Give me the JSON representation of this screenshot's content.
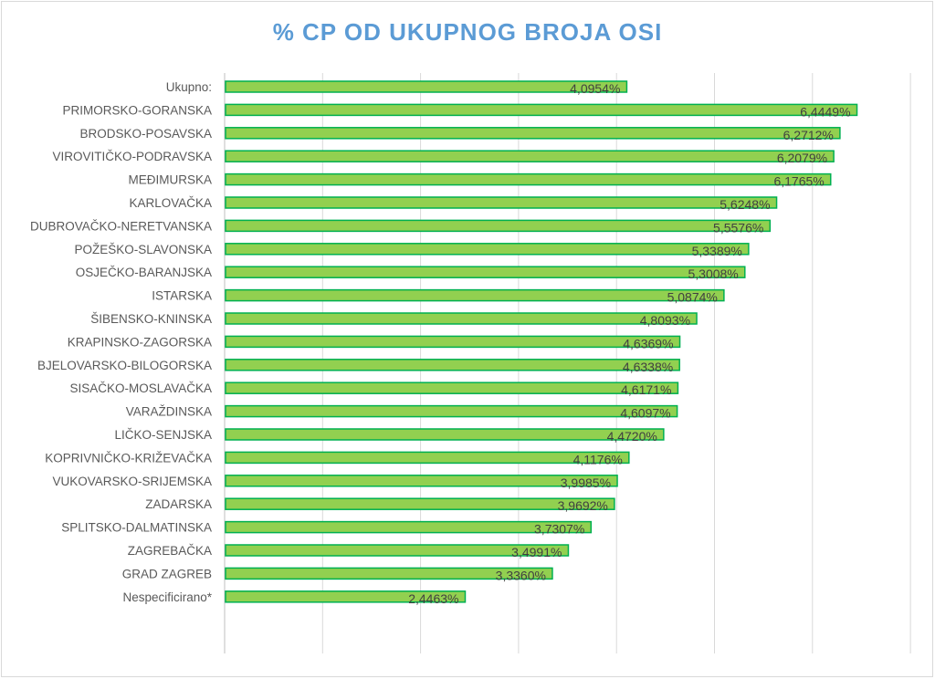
{
  "chart_data": {
    "type": "bar",
    "orientation": "horizontal",
    "title": "% CP OD UKUPNOG BROJA OSI",
    "xlabel": "",
    "ylabel": "",
    "xlim": [
      0,
      7
    ],
    "grid": true,
    "legend": "none",
    "colors": {
      "bar_fill": "#92d050",
      "bar_border": "#00b050",
      "title": "#5b9bd5",
      "grid": "#d9d9d9"
    },
    "categories": [
      "Ukupno:",
      "PRIMORSKO-GORANSKA",
      "BRODSKO-POSAVSKA",
      "VIROVITIČKO-PODRAVSKA",
      "MEĐIMURSKA",
      "KARLOVAČKA",
      "DUBROVAČKO-NERETVANSKA",
      "POŽEŠKO-SLAVONSKA",
      "OSJEČKO-BARANJSKA",
      "ISTARSKA",
      "ŠIBENSKO-KNINSKA",
      "KRAPINSKO-ZAGORSKA",
      "BJELOVARSKO-BILOGORSKA",
      "SISAČKO-MOSLAVAČKA",
      "VARAŽDINSKA",
      "LIČKO-SENJSKA",
      "KOPRIVNIČKO-KRIŽEVAČKA",
      "VUKOVARSKO-SRIJEMSKA",
      "ZADARSKA",
      "SPLITSKO-DALMATINSKA",
      "ZAGREBAČKA",
      "GRAD ZAGREB",
      "Nespecificirano*"
    ],
    "values": [
      4.0954,
      6.4449,
      6.2712,
      6.2079,
      6.1765,
      5.6248,
      5.5576,
      5.3389,
      5.3008,
      5.0874,
      4.8093,
      4.6369,
      4.6338,
      4.6171,
      4.6097,
      4.472,
      4.1176,
      3.9985,
      3.9692,
      3.7307,
      3.4991,
      3.336,
      2.4463
    ],
    "data_labels": [
      "4,0954%",
      "6,4449%",
      "6,2712%",
      "6,2079%",
      "6,1765%",
      "5,6248%",
      "5,5576%",
      "5,3389%",
      "5,3008%",
      "5,0874%",
      "4,8093%",
      "4,6369%",
      "4,6338%",
      "4,6171%",
      "4,6097%",
      "4,4720%",
      "4,1176%",
      "3,9985%",
      "3,9692%",
      "3,7307%",
      "3,4991%",
      "3,3360%",
      "2,4463%"
    ]
  }
}
